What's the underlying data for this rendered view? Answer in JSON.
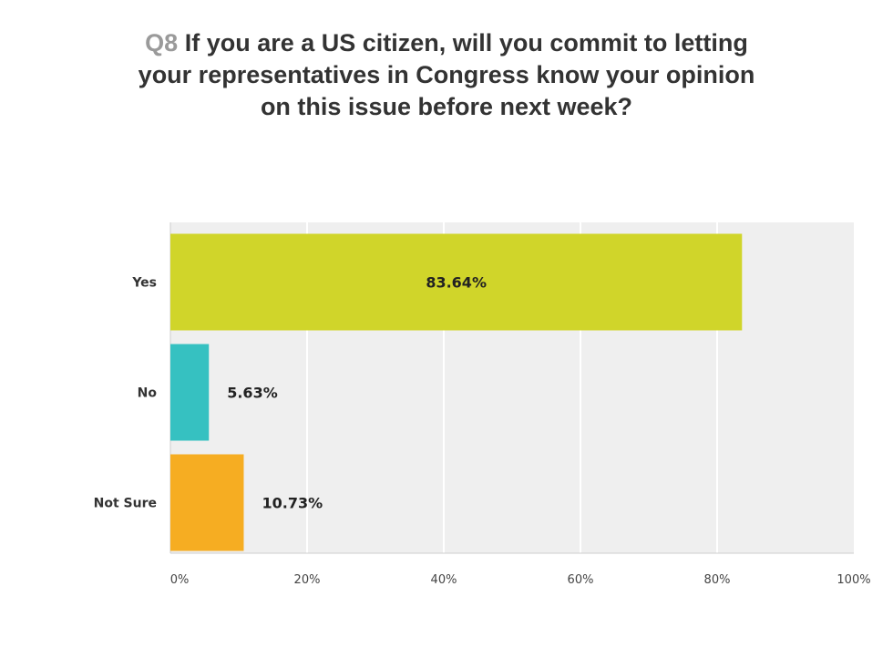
{
  "title": {
    "number": "Q8",
    "text": "If you are a US citizen, will you commit to letting your representatives in Congress know your opinion on this issue before next week?"
  },
  "colors": {
    "plot_background": "#efefef",
    "gridline": "#ffffff",
    "axis": "#cccccc"
  },
  "chart_data": {
    "type": "bar",
    "orientation": "horizontal",
    "title": "Q8 If you are a US citizen, will you commit to letting your representatives in Congress know your opinion on this issue before next week?",
    "categories": [
      "Yes",
      "No",
      "Not Sure"
    ],
    "values": [
      83.64,
      5.63,
      10.73
    ],
    "value_labels": [
      "83.64%",
      "5.63%",
      "10.73%"
    ],
    "bar_colors": [
      "#d0d52a",
      "#36c1c1",
      "#f6ad22"
    ],
    "xlabel": "",
    "ylabel": "",
    "xlim": [
      0,
      100
    ],
    "x_ticks": [
      0,
      20,
      40,
      60,
      80,
      100
    ],
    "x_tick_labels": [
      "0%",
      "20%",
      "40%",
      "60%",
      "80%",
      "100%"
    ],
    "grid": true,
    "legend": "none"
  }
}
